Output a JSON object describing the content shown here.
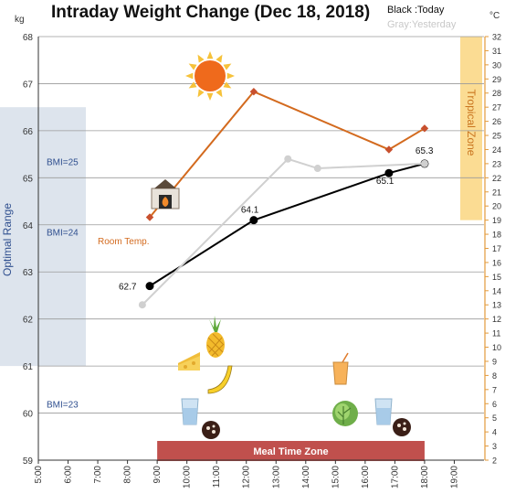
{
  "chart_data": {
    "type": "line",
    "title": "Intraday Weight Change (Dec 18, 2018)",
    "y_left_unit": "kg",
    "y_right_unit": "°C",
    "ylim_left": [
      59,
      68
    ],
    "ylim_right": [
      2,
      32
    ],
    "x_range": [
      5,
      20
    ],
    "y_left_ticks": [
      "59",
      "60",
      "61",
      "62",
      "63",
      "64",
      "65",
      "66",
      "67",
      "68"
    ],
    "y_right_ticks": [
      "2",
      "3",
      "4",
      "5",
      "6",
      "7",
      "8",
      "9",
      "10",
      "11",
      "12",
      "13",
      "14",
      "15",
      "16",
      "17",
      "18",
      "19",
      "20",
      "21",
      "22",
      "23",
      "24",
      "25",
      "26",
      "27",
      "28",
      "29",
      "30",
      "31",
      "32"
    ],
    "x_ticks": [
      "5:00",
      "6:00",
      "7:00",
      "8:00",
      "9:00",
      "10:00",
      "11:00",
      "12:00",
      "13:00",
      "14:00",
      "15:00",
      "16:00",
      "17:00",
      "18:00",
      "19:00"
    ],
    "legend": {
      "today": "Black :Today",
      "yesterday": "Gray:Yesterday"
    },
    "series": [
      {
        "name": "Today",
        "color": "#000000",
        "x": [
          8.75,
          12.25,
          16.8,
          18.0
        ],
        "y": [
          62.7,
          64.1,
          65.1,
          65.3
        ],
        "labels": [
          "62.7",
          "64.1",
          "65.1",
          "65.3"
        ]
      },
      {
        "name": "Yesterday",
        "color": "#d0d0d0",
        "x": [
          8.5,
          13.4,
          14.4,
          18.0
        ],
        "y": [
          62.3,
          65.4,
          65.2,
          65.3
        ],
        "labels": []
      },
      {
        "name": "Room Temp.",
        "color": "#d36a1e",
        "axis": "right",
        "x": [
          8.75,
          12.25,
          16.8,
          18.0
        ],
        "y": [
          19.2,
          28.1,
          24.0,
          25.5
        ],
        "labels": []
      }
    ],
    "bands": {
      "optimal_range": {
        "label": "Optimal Range",
        "ymin": 61,
        "ymax": 66.5,
        "color": "#dde4ed",
        "bmi_labels": [
          {
            "text": "BMI=25",
            "y": 65.35
          },
          {
            "text": "BMI=24",
            "y": 63.85
          },
          {
            "text": "BMI=23",
            "y": 60.2
          }
        ]
      },
      "tropical_zone": {
        "label": "Tropical Zone",
        "ymin_right": 19,
        "ymax_right": 32,
        "color": "#fbdc93"
      },
      "meal_time_zone": {
        "label": "Meal Time Zone",
        "xmin": 9.0,
        "xmax": 18.0,
        "color": "#c0504d"
      }
    },
    "room_temp_label": "Room Temp.",
    "grid": true
  },
  "icons": [
    "sun-icon",
    "fireplace-icon",
    "pineapple-icon",
    "cheese-icon",
    "banana-icon",
    "water-glass-icon",
    "chocolate-cookie-icon",
    "juice-glass-icon",
    "lettuce-icon"
  ]
}
